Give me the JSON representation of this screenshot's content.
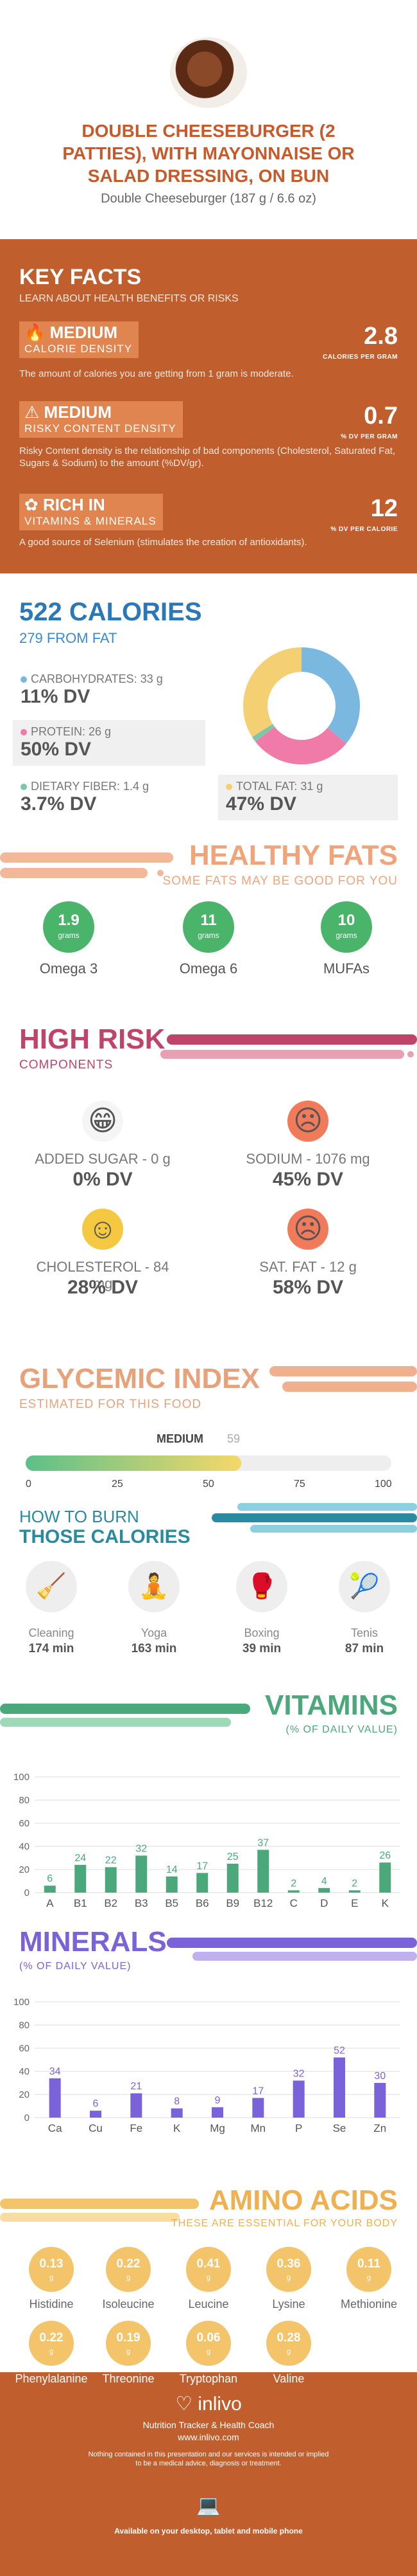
{
  "header": {
    "title_line1": "DOUBLE CHEESEBURGER (2",
    "title_line2": "PATTIES), WITH MAYONNAISE OR",
    "title_line3": "SALAD DRESSING, ON BUN",
    "subtitle": "Double Cheeseburger (187 g / 6.6 oz)"
  },
  "key_facts": {
    "title": "KEY FACTS",
    "subtitle": "LEARN ABOUT HEALTH BENEFITS OR RISKS",
    "items": [
      {
        "level": "MEDIUM",
        "label": "CALORIE DENSITY",
        "desc": "The amount of calories you are getting from 1 gram is moderate.",
        "value": "2.8",
        "unit": "CALORIES PER GRAM"
      },
      {
        "level": "MEDIUM",
        "label": "RISKY CONTENT DENSITY",
        "desc": "Risky Content density is the relationship of bad components (Cholesterol, Saturated Fat, Sugars & Sodium) to the amount (%DV/gr).",
        "value": "0.7",
        "unit": "% DV PER GRAM"
      },
      {
        "level": "RICH  IN",
        "label": "VITAMINS & MINERALS",
        "desc": "A good source of Selenium (stimulates the creation of antioxidants).",
        "value": "12",
        "unit": "% DV PER CALORIE"
      }
    ]
  },
  "calories": {
    "title": "522 CALORIES",
    "from_fat": "279 FROM FAT",
    "nutrients": [
      {
        "label": "CARBOHYDRATES: 33 g",
        "dv": "11% DV",
        "color": "#7ab8e0"
      },
      {
        "label": "PROTEIN: 26 g",
        "dv": "50% DV",
        "color": "#f07aa8"
      },
      {
        "label": "DIETARY FIBER: 1.4 g",
        "dv": "3.7% DV",
        "color": "#7ac8a8"
      },
      {
        "label": "TOTAL FAT: 31 g",
        "dv": "47% DV",
        "color": "#f5d072"
      }
    ],
    "donut": [
      {
        "name": "carbs",
        "value": 33,
        "color": "#7ab8e0"
      },
      {
        "name": "protein",
        "value": 26,
        "color": "#f07aa8"
      },
      {
        "name": "fiber",
        "value": 1.4,
        "color": "#7ac8a8"
      },
      {
        "name": "fat",
        "value": 31,
        "color": "#f5d072"
      }
    ]
  },
  "healthy_fats": {
    "title": "HEALTHY FATS",
    "subtitle": "SOME FATS MAY BE GOOD FOR YOU",
    "items": [
      {
        "value": "1.9",
        "unit": "grams",
        "label": "Omega 3"
      },
      {
        "value": "11",
        "unit": "grams",
        "label": "Omega 6"
      },
      {
        "value": "10",
        "unit": "grams",
        "label": "MUFAs"
      }
    ]
  },
  "high_risk": {
    "title": "HIGH RISK",
    "subtitle": "COMPONENTS",
    "items": [
      {
        "label": "ADDED SUGAR - 0 g",
        "dv": "0% DV",
        "face": "😁",
        "color": "#f5f5f5"
      },
      {
        "label": "SODIUM - 1076 mg",
        "dv": "45% DV",
        "face": "☹",
        "color": "#f07a5a"
      },
      {
        "label": "CHOLESTEROL - 84 mg",
        "dv": "28% DV",
        "face": "☺",
        "color": "#f5c842"
      },
      {
        "label": "SAT. FAT - 12 g",
        "dv": "58% DV",
        "face": "☹",
        "color": "#f07a5a"
      }
    ]
  },
  "glycemic": {
    "title": "GLYCEMIC INDEX",
    "subtitle": "ESTIMATED FOR THIS FOOD",
    "level": "MEDIUM",
    "value": 59,
    "value_label": "59",
    "ticks": [
      "0",
      "25",
      "50",
      "75",
      "100"
    ]
  },
  "burn": {
    "title1": "HOW TO BURN",
    "title2": "THOSE CALORIES",
    "items": [
      {
        "label": "Cleaning",
        "time": "174 min",
        "icon": "🧹"
      },
      {
        "label": "Yoga",
        "time": "163 min",
        "icon": "🧘"
      },
      {
        "label": "Boxing",
        "time": "39 min",
        "icon": "🥊"
      },
      {
        "label": "Tenis",
        "time": "87 min",
        "icon": "🎾"
      }
    ]
  },
  "vitamins": {
    "title": "VITAMINS",
    "subtitle": "(% OF DAILY VALUE)",
    "chart_data": {
      "type": "bar",
      "categories": [
        "A",
        "B1",
        "B2",
        "B3",
        "B5",
        "B6",
        "B9",
        "B12",
        "C",
        "D",
        "E",
        "K"
      ],
      "values": [
        6,
        24,
        22,
        32,
        14,
        17,
        25,
        37,
        2,
        4,
        2,
        26
      ],
      "ylim": [
        0,
        100
      ],
      "yticks": [
        "100",
        "80",
        "60",
        "40",
        "20",
        "0"
      ],
      "color": "#4aa87a"
    }
  },
  "minerals": {
    "title": "MINERALS",
    "subtitle": "(% OF DAILY VALUE)",
    "chart_data": {
      "type": "bar",
      "categories": [
        "Ca",
        "Cu",
        "Fe",
        "K",
        "Mg",
        "Mn",
        "P",
        "Se",
        "Zn"
      ],
      "values": [
        34,
        6,
        21,
        8,
        9,
        17,
        32,
        52,
        30
      ],
      "ylim": [
        0,
        100
      ],
      "yticks": [
        "100",
        "80",
        "60",
        "40",
        "20",
        "0"
      ],
      "color": "#7a62d8"
    }
  },
  "amino": {
    "title": "AMINO ACIDS",
    "subtitle": "THESE ARE ESSENTIAL FOR YOUR BODY",
    "items": [
      {
        "value": "0.13",
        "unit": "g",
        "label": "Histidine"
      },
      {
        "value": "0.22",
        "unit": "g",
        "label": "Isoleucine"
      },
      {
        "value": "0.41",
        "unit": "g",
        "label": "Leucine"
      },
      {
        "value": "0.36",
        "unit": "g",
        "label": "Lysine"
      },
      {
        "value": "0.11",
        "unit": "g",
        "label": "Methionine"
      },
      {
        "value": "0.22",
        "unit": "g",
        "label": "Phenylalanine"
      },
      {
        "value": "0.19",
        "unit": "g",
        "label": "Threonine"
      },
      {
        "value": "0.06",
        "unit": "g",
        "label": "Tryptophan"
      },
      {
        "value": "0.28",
        "unit": "g",
        "label": "Valine"
      }
    ]
  },
  "footer": {
    "brand": "inlivo",
    "tagline": "Nutrition Tracker & Health Coach",
    "url": "www.inlivo.com",
    "disclaimer1": "Nothing contained in this presentation and our services is intended or implied",
    "disclaimer2": "to be a medical advice, diagnosis or treatment.",
    "available": "Available on your desktop, tablet and mobile phone"
  }
}
